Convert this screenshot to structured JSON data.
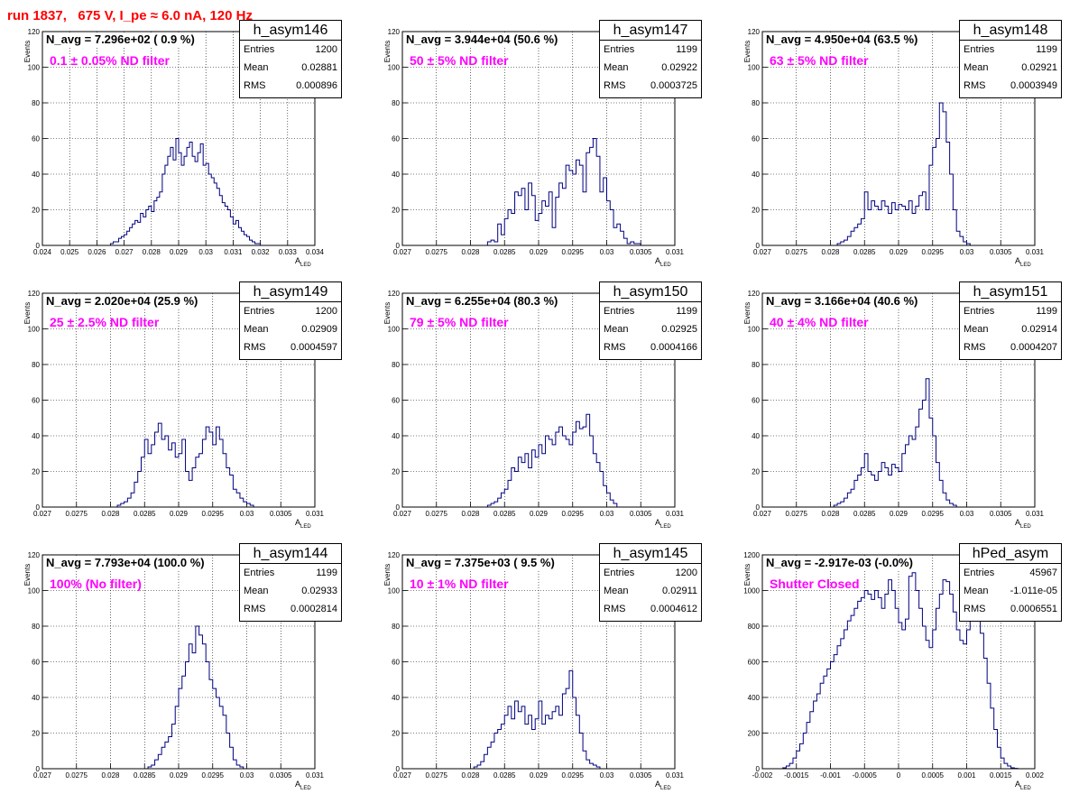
{
  "title": "run 1837,   675 V, I_pe ≈ 6.0 nA, 120 Hz",
  "colors": {
    "histogram": "#000080",
    "title": "#ff0000",
    "filter_label": "#ff00ff"
  },
  "axis_labels": {
    "y": "Events",
    "x_main": "A",
    "x_sub": "LED"
  },
  "stat_labels": {
    "entries": "Entries",
    "mean": "Mean",
    "rms": "RMS"
  },
  "chart_data": [
    {
      "type": "histogram",
      "name": "h_asym146",
      "navg": "N_avg = 7.296e+02 ( 0.9 %)",
      "filter": "0.1 ± 0.05% ND filter",
      "stats": {
        "entries": "1200",
        "mean": "0.02881",
        "rms": "0.000896"
      },
      "xlim": [
        0.024,
        0.034
      ],
      "ylim": [
        0,
        120
      ],
      "grid": true,
      "xticks": [
        "0.024",
        "0.025",
        "0.026",
        "0.027",
        "0.028",
        "0.029",
        "0.03",
        "0.031",
        "0.032",
        "0.033",
        "0.034"
      ],
      "yticks": [
        "0",
        "20",
        "40",
        "60",
        "80",
        "100",
        "120"
      ],
      "ylabel": "Events",
      "xlabel": "A_LED",
      "bins": {
        "start": 0.0265,
        "width": 0.0001,
        "counts": [
          1,
          2,
          2,
          4,
          5,
          6,
          8,
          10,
          12,
          14,
          13,
          18,
          16,
          20,
          22,
          19,
          25,
          27,
          30,
          40,
          45,
          50,
          55,
          48,
          60,
          52,
          45,
          50,
          55,
          58,
          50,
          47,
          52,
          57,
          45,
          46,
          40,
          38,
          35,
          32,
          28,
          24,
          22,
          20,
          16,
          12,
          14,
          10,
          8,
          6,
          5,
          3,
          2,
          1,
          1
        ]
      }
    },
    {
      "type": "histogram",
      "name": "h_asym147",
      "navg": "N_avg = 3.944e+04 (50.6 %)",
      "filter": "50 ± 5% ND filter",
      "stats": {
        "entries": "1199",
        "mean": "0.02922",
        "rms": "0.0003725"
      },
      "xlim": [
        0.027,
        0.031
      ],
      "ylim": [
        0,
        120
      ],
      "grid": true,
      "xticks": [
        "0.027",
        "0.0275",
        "0.028",
        "0.0285",
        "0.029",
        "0.0295",
        "0.03",
        "0.0305",
        "0.031"
      ],
      "yticks": [
        "0",
        "20",
        "40",
        "60",
        "80",
        "100",
        "120"
      ],
      "ylabel": "Events",
      "xlabel": "A_LED",
      "bins": {
        "start": 0.02825,
        "width": 5e-05,
        "counts": [
          2,
          3,
          2,
          12,
          6,
          15,
          20,
          18,
          30,
          28,
          32,
          20,
          35,
          28,
          14,
          18,
          25,
          22,
          30,
          10,
          27,
          35,
          32,
          45,
          42,
          40,
          48,
          45,
          30,
          52,
          55,
          60,
          50,
          30,
          38,
          25,
          20,
          10,
          12,
          8,
          4,
          1,
          2,
          1,
          1
        ]
      }
    },
    {
      "type": "histogram",
      "name": "h_asym148",
      "navg": "N_avg = 4.950e+04 (63.5 %)",
      "filter": "63 ± 5% ND filter",
      "stats": {
        "entries": "1199",
        "mean": "0.02921",
        "rms": "0.0003949"
      },
      "xlim": [
        0.027,
        0.031
      ],
      "ylim": [
        0,
        120
      ],
      "grid": true,
      "xticks": [
        "0.027",
        "0.0275",
        "0.028",
        "0.0285",
        "0.029",
        "0.0295",
        "0.03",
        "0.0305",
        "0.031"
      ],
      "yticks": [
        "0",
        "20",
        "40",
        "60",
        "80",
        "100",
        "120"
      ],
      "ylabel": "Events",
      "xlabel": "A_LED",
      "bins": {
        "start": 0.0281,
        "width": 5e-05,
        "counts": [
          1,
          2,
          3,
          5,
          8,
          10,
          12,
          15,
          30,
          20,
          25,
          22,
          20,
          25,
          22,
          18,
          24,
          20,
          23,
          22,
          20,
          25,
          18,
          22,
          28,
          30,
          20,
          45,
          55,
          60,
          80,
          75,
          58,
          40,
          20,
          8,
          5,
          2,
          1
        ]
      }
    },
    {
      "type": "histogram",
      "name": "h_asym149",
      "navg": "N_avg = 2.020e+04 (25.9 %)",
      "filter": "25 ± 2.5% ND filter",
      "stats": {
        "entries": "1200",
        "mean": "0.02909",
        "rms": "0.0004597"
      },
      "xlim": [
        0.027,
        0.031
      ],
      "ylim": [
        0,
        120
      ],
      "grid": true,
      "xticks": [
        "0.027",
        "0.0275",
        "0.028",
        "0.0285",
        "0.029",
        "0.0295",
        "0.03",
        "0.0305",
        "0.031"
      ],
      "yticks": [
        "0",
        "20",
        "40",
        "60",
        "80",
        "100",
        "120"
      ],
      "ylabel": "Events",
      "xlabel": "A_LED",
      "bins": {
        "start": 0.0281,
        "width": 5e-05,
        "counts": [
          1,
          2,
          3,
          5,
          8,
          14,
          20,
          28,
          38,
          30,
          35,
          42,
          47,
          38,
          40,
          32,
          36,
          28,
          30,
          38,
          20,
          15,
          22,
          28,
          30,
          38,
          45,
          42,
          35,
          45,
          38,
          30,
          22,
          18,
          10,
          8,
          5,
          3,
          2,
          1
        ]
      }
    },
    {
      "type": "histogram",
      "name": "h_asym150",
      "navg": "N_avg = 6.255e+04 (80.3 %)",
      "filter": "79 ± 5% ND filter",
      "stats": {
        "entries": "1199",
        "mean": "0.02925",
        "rms": "0.0004166"
      },
      "xlim": [
        0.027,
        0.031
      ],
      "ylim": [
        0,
        120
      ],
      "grid": true,
      "xticks": [
        "0.027",
        "0.0275",
        "0.028",
        "0.0285",
        "0.029",
        "0.0295",
        "0.03",
        "0.0305",
        "0.031"
      ],
      "yticks": [
        "0",
        "20",
        "40",
        "60",
        "80",
        "100",
        "120"
      ],
      "ylabel": "Events",
      "xlabel": "A_LED",
      "bins": {
        "start": 0.02825,
        "width": 5e-05,
        "counts": [
          1,
          2,
          3,
          5,
          8,
          10,
          15,
          22,
          20,
          28,
          25,
          30,
          22,
          32,
          28,
          35,
          30,
          40,
          38,
          35,
          42,
          45,
          40,
          38,
          35,
          42,
          48,
          44,
          45,
          52,
          40,
          30,
          25,
          20,
          12,
          8,
          4,
          2
        ]
      }
    },
    {
      "type": "histogram",
      "name": "h_asym151",
      "navg": "N_avg = 3.166e+04 (40.6 %)",
      "filter": "40 ± 4% ND filter",
      "stats": {
        "entries": "1199",
        "mean": "0.02914",
        "rms": "0.0004207"
      },
      "xlim": [
        0.027,
        0.031
      ],
      "ylim": [
        0,
        120
      ],
      "grid": true,
      "xticks": [
        "0.027",
        "0.0275",
        "0.028",
        "0.0285",
        "0.029",
        "0.0295",
        "0.03",
        "0.0305",
        "0.031"
      ],
      "yticks": [
        "0",
        "20",
        "40",
        "60",
        "80",
        "100",
        "120"
      ],
      "ylabel": "Events",
      "xlabel": "A_LED",
      "bins": {
        "start": 0.02805,
        "width": 5e-05,
        "counts": [
          1,
          2,
          3,
          5,
          8,
          10,
          15,
          18,
          22,
          30,
          20,
          18,
          15,
          20,
          25,
          22,
          18,
          24,
          22,
          20,
          30,
          35,
          40,
          38,
          45,
          55,
          60,
          72,
          50,
          40,
          25,
          15,
          8,
          4,
          2,
          1
        ]
      }
    },
    {
      "type": "histogram",
      "name": "h_asym144",
      "navg": "N_avg = 7.793e+04 (100.0 %)",
      "filter": "100% (No filter)",
      "stats": {
        "entries": "1199",
        "mean": "0.02933",
        "rms": "0.0002814"
      },
      "xlim": [
        0.027,
        0.031
      ],
      "ylim": [
        0,
        120
      ],
      "grid": true,
      "xticks": [
        "0.027",
        "0.0275",
        "0.028",
        "0.0285",
        "0.029",
        "0.0295",
        "0.03",
        "0.0305",
        "0.031"
      ],
      "yticks": [
        "0",
        "20",
        "40",
        "60",
        "80",
        "100",
        "120"
      ],
      "ylabel": "Events",
      "xlabel": "A_LED",
      "bins": {
        "start": 0.02855,
        "width": 5e-05,
        "counts": [
          1,
          2,
          5,
          8,
          12,
          15,
          18,
          25,
          35,
          45,
          52,
          60,
          70,
          65,
          80,
          75,
          70,
          60,
          50,
          45,
          40,
          35,
          30,
          20,
          12,
          5,
          2,
          1
        ]
      }
    },
    {
      "type": "histogram",
      "name": "h_asym145",
      "navg": "N_avg = 7.375e+03 ( 9.5 %)",
      "filter": "10 ± 1% ND filter",
      "stats": {
        "entries": "1200",
        "mean": "0.02911",
        "rms": "0.0004612"
      },
      "xlim": [
        0.027,
        0.031
      ],
      "ylim": [
        0,
        120
      ],
      "grid": true,
      "xticks": [
        "0.027",
        "0.0275",
        "0.028",
        "0.0285",
        "0.029",
        "0.0295",
        "0.03",
        "0.0305",
        "0.031"
      ],
      "yticks": [
        "0",
        "20",
        "40",
        "60",
        "80",
        "100",
        "120"
      ],
      "ylabel": "Events",
      "xlabel": "A_LED",
      "bins": {
        "start": 0.02805,
        "width": 5e-05,
        "counts": [
          1,
          2,
          4,
          8,
          12,
          15,
          20,
          22,
          25,
          30,
          35,
          28,
          38,
          32,
          35,
          25,
          30,
          22,
          28,
          38,
          25,
          30,
          28,
          32,
          35,
          30,
          42,
          45,
          55,
          40,
          30,
          20,
          10,
          5,
          3,
          2,
          1
        ]
      }
    },
    {
      "type": "histogram",
      "name": "hPed_asym",
      "navg": "N_avg = -2.917e-03 (-0.0%)",
      "filter": "Shutter Closed",
      "stats": {
        "entries": "45967",
        "mean": "-1.011e-05",
        "rms": "0.0006551"
      },
      "xlim": [
        -0.002,
        0.002
      ],
      "ylim": [
        0,
        1200
      ],
      "grid": true,
      "xticks": [
        "-0.002",
        "-0.0015",
        "-0.001",
        "-0.0005",
        "0",
        "0.0005",
        "0.001",
        "0.0015",
        "0.002"
      ],
      "yticks": [
        "0",
        "200",
        "400",
        "600",
        "800",
        "1000",
        "1200"
      ],
      "ylabel": "Events",
      "xlabel": "A_LED",
      "bins": {
        "start": -0.0017,
        "width": 5e-05,
        "counts": [
          5,
          15,
          30,
          60,
          100,
          140,
          200,
          260,
          320,
          380,
          420,
          480,
          520,
          560,
          600,
          640,
          690,
          730,
          780,
          830,
          860,
          900,
          940,
          960,
          1000,
          980,
          950,
          1000,
          960,
          900,
          980,
          1060,
          1000,
          900,
          820,
          780,
          840,
          1080,
          1100,
          1000,
          900,
          800,
          720,
          680,
          780,
          900,
          980,
          1060,
          1050,
          980,
          880,
          780,
          720,
          700,
          780,
          860,
          920,
          880,
          760,
          620,
          480,
          340,
          220,
          120,
          60,
          30,
          15,
          5,
          2
        ]
      }
    }
  ]
}
